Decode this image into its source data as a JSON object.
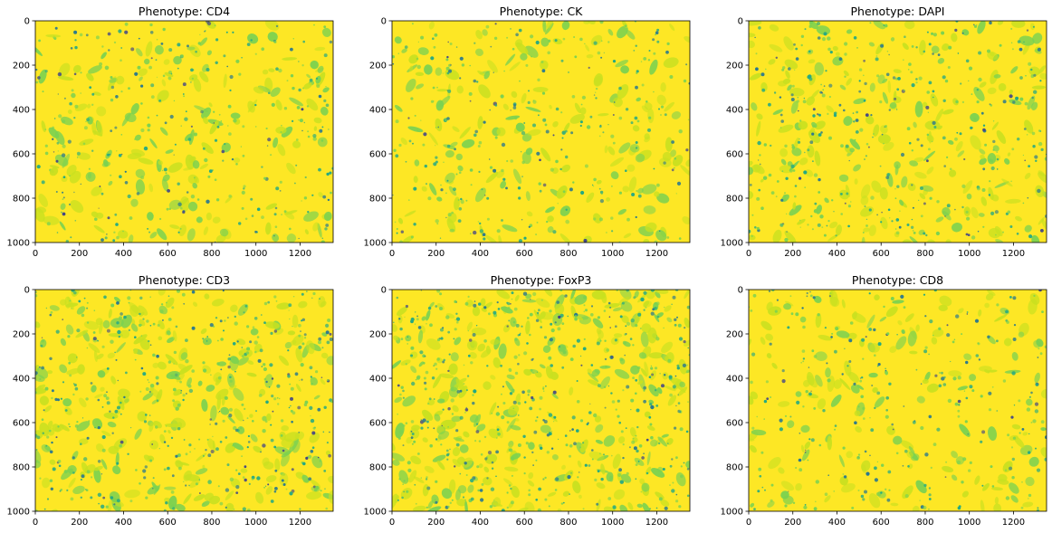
{
  "figure": {
    "rows": 2,
    "cols": 3,
    "colors": {
      "background": "#ffffff",
      "high": "#fde725",
      "mid_high": "#c8e020",
      "mid": "#7ad151",
      "mid_low": "#22a884",
      "low": "#2a788e",
      "lowest": "#414487"
    }
  },
  "chart_data": [
    {
      "type": "heatmap",
      "title": "Phenotype: CD4",
      "colormap": "viridis",
      "xlim": [
        0,
        1350
      ],
      "ylim": [
        1000,
        0
      ],
      "xticks": [
        "0",
        "200",
        "400",
        "600",
        "800",
        "1000",
        "1200"
      ],
      "yticks": [
        "0",
        "200",
        "400",
        "600",
        "800",
        "1000"
      ],
      "density": 0.38
    },
    {
      "type": "heatmap",
      "title": "Phenotype: CK",
      "colormap": "viridis",
      "xlim": [
        0,
        1350
      ],
      "ylim": [
        1000,
        0
      ],
      "xticks": [
        "0",
        "200",
        "400",
        "600",
        "800",
        "1000",
        "1200"
      ],
      "yticks": [
        "0",
        "200",
        "400",
        "600",
        "800",
        "1000"
      ],
      "density": 0.36
    },
    {
      "type": "heatmap",
      "title": "Phenotype: DAPI",
      "colormap": "viridis",
      "xlim": [
        0,
        1350
      ],
      "ylim": [
        1000,
        0
      ],
      "xticks": [
        "0",
        "200",
        "400",
        "600",
        "800",
        "1000",
        "1200"
      ],
      "yticks": [
        "0",
        "200",
        "400",
        "600",
        "800",
        "1000"
      ],
      "density": 0.45
    },
    {
      "type": "heatmap",
      "title": "Phenotype: CD3",
      "colormap": "viridis",
      "xlim": [
        0,
        1350
      ],
      "ylim": [
        1000,
        0
      ],
      "xticks": [
        "0",
        "200",
        "400",
        "600",
        "800",
        "1000",
        "1200"
      ],
      "yticks": [
        "0",
        "200",
        "400",
        "600",
        "800",
        "1000"
      ],
      "density": 0.55
    },
    {
      "type": "heatmap",
      "title": "Phenotype: FoxP3",
      "colormap": "viridis",
      "xlim": [
        0,
        1350
      ],
      "ylim": [
        1000,
        0
      ],
      "xticks": [
        "0",
        "200",
        "400",
        "600",
        "800",
        "1000",
        "1200"
      ],
      "yticks": [
        "0",
        "200",
        "400",
        "600",
        "800",
        "1000"
      ],
      "density": 0.62
    },
    {
      "type": "heatmap",
      "title": "Phenotype: CD8",
      "colormap": "viridis",
      "xlim": [
        0,
        1350
      ],
      "ylim": [
        1000,
        0
      ],
      "xticks": [
        "0",
        "200",
        "400",
        "600",
        "800",
        "1000",
        "1200"
      ],
      "yticks": [
        "0",
        "200",
        "400",
        "600",
        "800",
        "1000"
      ],
      "density": 0.34
    }
  ]
}
